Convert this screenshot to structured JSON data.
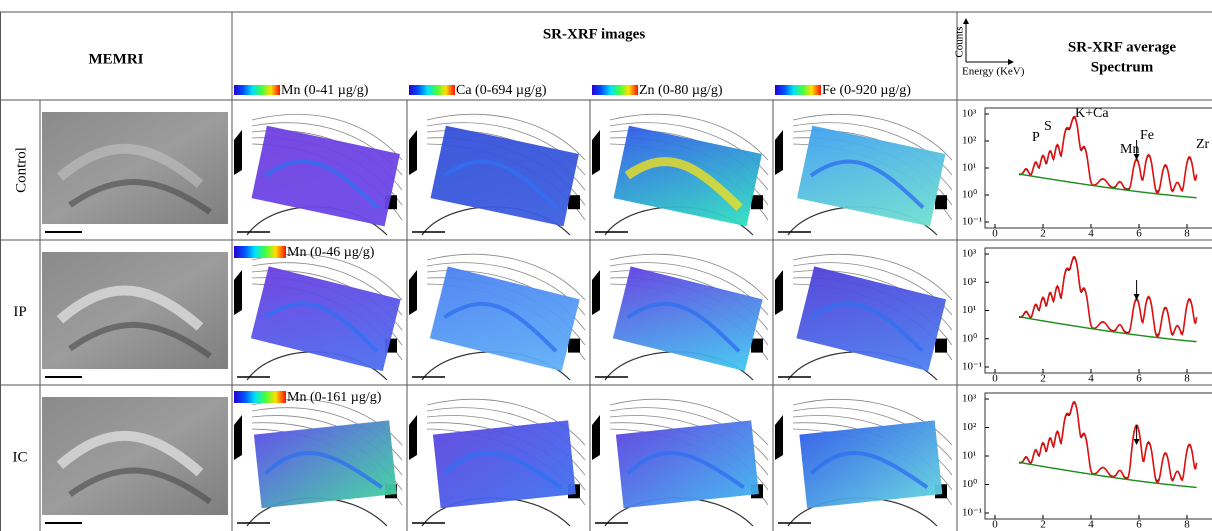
{
  "header": {
    "memri": "MEMRI",
    "srxrf": "SR-XRF images",
    "spectrum_title": [
      "SR-XRF average",
      "Spectrum"
    ],
    "axis_y": "Counts",
    "axis_x": "Energy (KeV)",
    "colorbars": [
      "Mn (0-41 µg/g)",
      "Ca (0-694 µg/g)",
      "Zn (0-80 µg/g)",
      "Fe (0-920 µg/g)"
    ]
  },
  "rows": [
    {
      "label": "Control",
      "annotations": [
        "P",
        "S",
        "K+Ca",
        "Mn",
        "Fe",
        "Zr"
      ]
    },
    {
      "label": "IP",
      "colorbar": "Mn (0-46 µg/g)"
    },
    {
      "label": "IC",
      "colorbar": "Mn (0-161 µg/g)"
    }
  ],
  "spectrum_axis": {
    "yticks": [
      "10³",
      "10²",
      "10¹",
      "10⁰",
      "10⁻¹"
    ],
    "xticks": [
      "0",
      "2",
      "4",
      "6",
      "8"
    ]
  }
}
